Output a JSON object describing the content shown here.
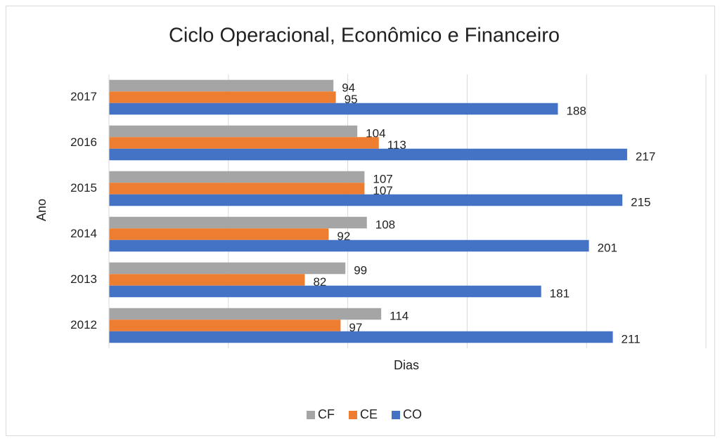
{
  "chart_data": {
    "type": "hbar",
    "title": "Ciclo Operacional, Econômico e Financeiro",
    "x_label": "Dias",
    "y_label": "Ano",
    "categories": [
      "2012",
      "2013",
      "2014",
      "2015",
      "2016",
      "2017"
    ],
    "series": [
      {
        "name": "CF",
        "color": "#a5a5a5",
        "values": [
          114,
          99,
          108,
          107,
          104,
          94
        ]
      },
      {
        "name": "CE",
        "color": "#ed7d31",
        "values": [
          97,
          82,
          92,
          107,
          113,
          95
        ]
      },
      {
        "name": "CO",
        "color": "#4472c4",
        "values": [
          211,
          181,
          201,
          215,
          217,
          188
        ]
      }
    ],
    "xlim": [
      0,
      250
    ],
    "xticks": [
      0,
      50,
      100,
      150,
      200,
      250
    ],
    "grid": true,
    "legend": "bottom"
  }
}
